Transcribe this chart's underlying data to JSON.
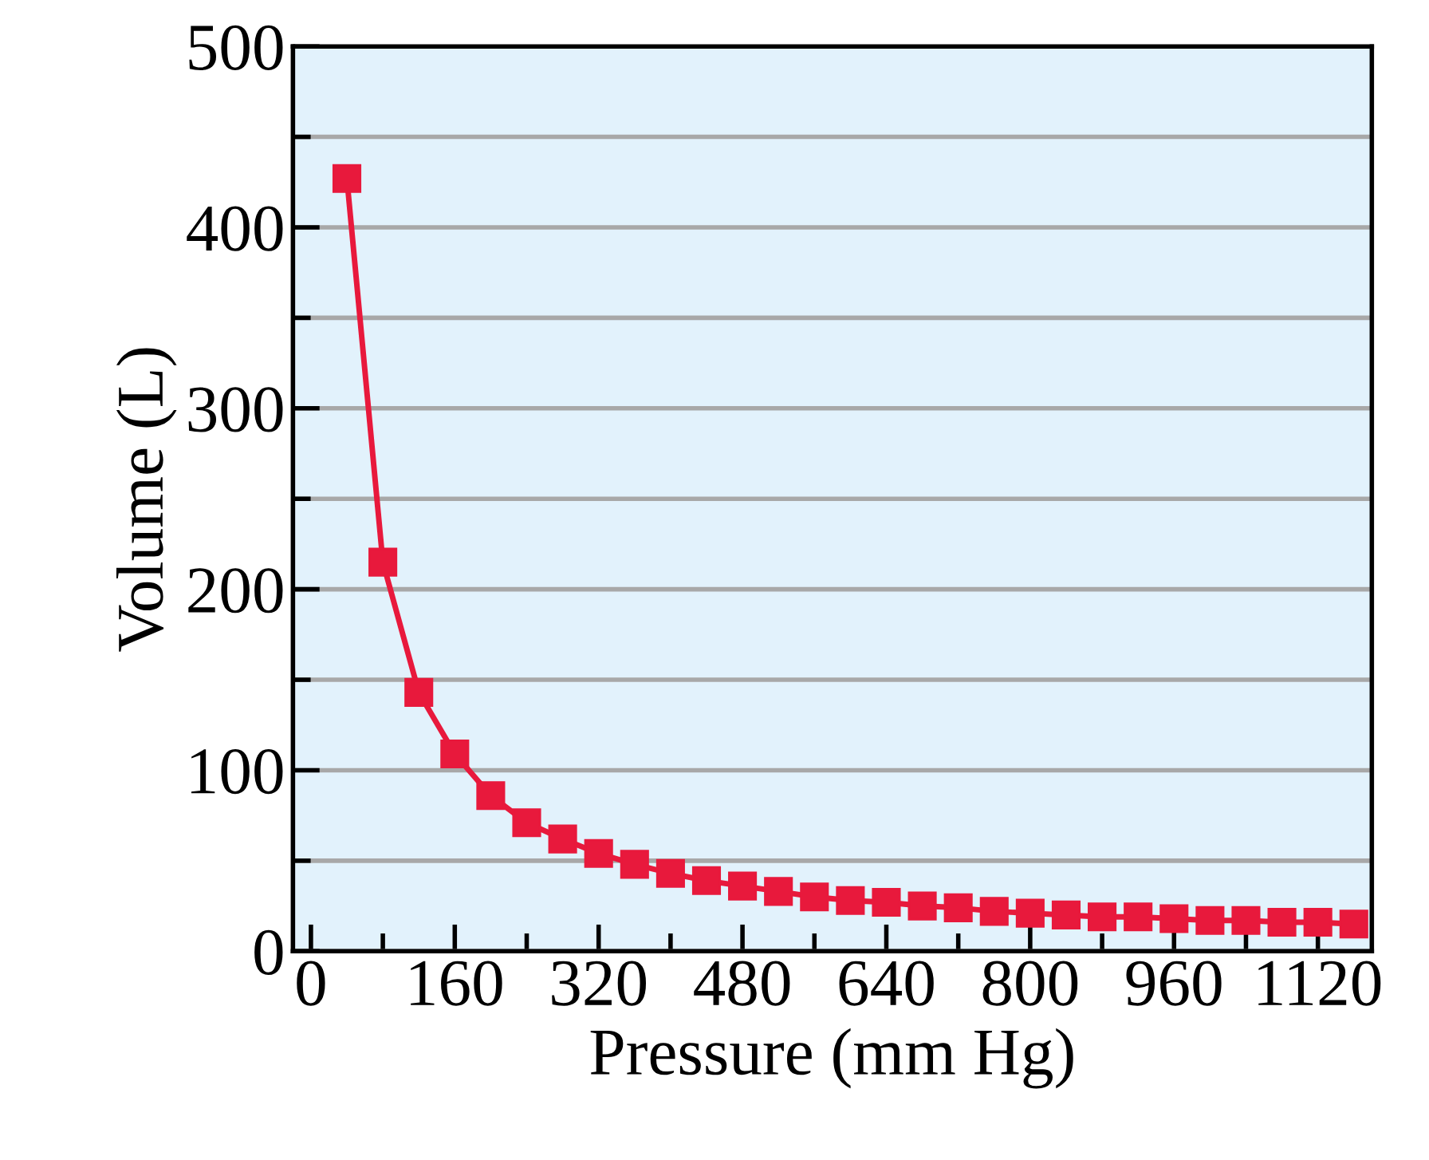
{
  "chart_data": {
    "type": "line",
    "xlabel": "Pressure (mm Hg)",
    "ylabel": "Volume (L)",
    "x": [
      40,
      80,
      120,
      160,
      200,
      240,
      280,
      320,
      360,
      400,
      440,
      480,
      520,
      560,
      600,
      640,
      680,
      720,
      760,
      800,
      840,
      880,
      920,
      960,
      1000,
      1040,
      1080,
      1120,
      1160
    ],
    "series": [
      {
        "color": "#e8193c",
        "values": [
          427,
          215,
          143,
          109,
          86,
          71,
          62,
          54,
          48,
          43,
          39,
          36,
          33,
          30,
          28,
          27,
          25,
          24,
          22,
          21,
          20,
          19,
          19,
          18,
          17,
          17,
          16,
          16,
          15
        ]
      }
    ],
    "marker": "square",
    "line_style": "solid",
    "grid": "y",
    "legend": false,
    "xlim": [
      -20,
      1180
    ],
    "ylim": [
      0,
      500
    ],
    "xticks": [
      0,
      {
        "value": 80,
        "label": null
      },
      160,
      {
        "value": 240,
        "label": null
      },
      320,
      {
        "value": 400,
        "label": null
      },
      480,
      {
        "value": 560,
        "label": null
      },
      640,
      {
        "value": 720,
        "label": null
      },
      800,
      {
        "value": 880,
        "label": null
      },
      960,
      {
        "value": 1040,
        "label": null
      },
      1120
    ],
    "yticks": [
      0,
      {
        "value": 50,
        "label": null
      },
      100,
      {
        "value": 150,
        "label": null
      },
      200,
      {
        "value": 250,
        "label": null
      },
      300,
      {
        "value": 350,
        "label": null
      },
      400,
      {
        "value": 450,
        "label": null
      },
      500
    ]
  }
}
